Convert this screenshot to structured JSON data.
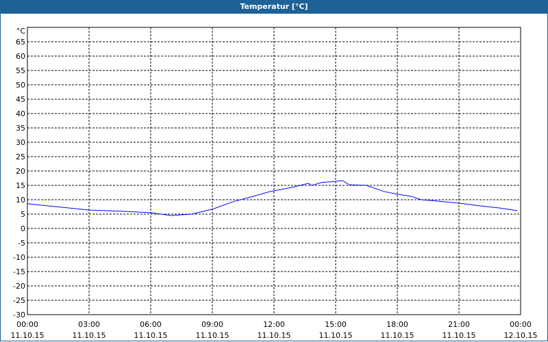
{
  "window": {
    "title": "Temperatur [°C]"
  },
  "chart_data": {
    "type": "line",
    "title": "Temperatur [°C]",
    "ylabel": "°C",
    "ylim": [
      -30,
      70
    ],
    "yticks": [
      65,
      60,
      55,
      50,
      45,
      40,
      35,
      30,
      25,
      20,
      15,
      10,
      5,
      0,
      -5,
      -10,
      -15,
      -20,
      -25,
      -30
    ],
    "xlim": [
      "11.10.15 00:00",
      "12.10.15 00:00"
    ],
    "xticks": [
      {
        "time": "00:00",
        "date": "11.10.15"
      },
      {
        "time": "03:00",
        "date": "11.10.15"
      },
      {
        "time": "06:00",
        "date": "11.10.15"
      },
      {
        "time": "09:00",
        "date": "11.10.15"
      },
      {
        "time": "12:00",
        "date": "11.10.15"
      },
      {
        "time": "15:00",
        "date": "11.10.15"
      },
      {
        "time": "18:00",
        "date": "11.10.15"
      },
      {
        "time": "21:00",
        "date": "11.10.15"
      },
      {
        "time": "00:00",
        "date": "12.10.15"
      }
    ],
    "grid": true,
    "line_color": "#0000ff",
    "series": [
      {
        "x": [
          "00:00",
          "03:00",
          "04:30",
          "06:00",
          "07:00",
          "08:00",
          "09:00",
          "10:00",
          "11:00",
          "11:50",
          "12:00",
          "13:00",
          "13:40",
          "13:50",
          "14:20",
          "15:00",
          "15:20",
          "15:40",
          "16:30",
          "17:20",
          "18:00",
          "18:40",
          "19:10",
          "20:00",
          "21:00",
          "22:00",
          "23:00",
          "23:50"
        ],
        "y": [
          8.6,
          6.4,
          6.0,
          5.5,
          4.5,
          5.0,
          6.7,
          9.3,
          11.2,
          12.9,
          13.1,
          14.5,
          15.7,
          15.0,
          16.0,
          16.4,
          16.7,
          15.2,
          15.0,
          12.9,
          11.9,
          11.2,
          10.0,
          9.5,
          8.8,
          7.9,
          7.1,
          6.2
        ]
      }
    ]
  }
}
